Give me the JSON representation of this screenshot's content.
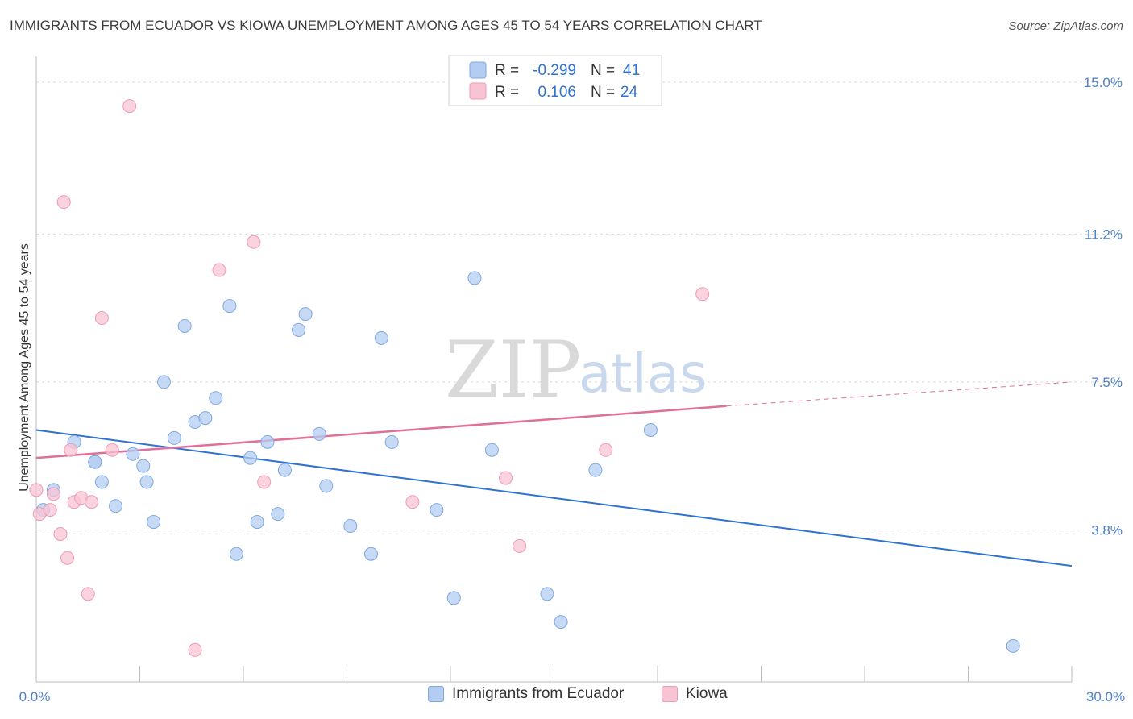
{
  "title": "IMMIGRANTS FROM ECUADOR VS KIOWA UNEMPLOYMENT AMONG AGES 45 TO 54 YEARS CORRELATION CHART",
  "source": "Source: ZipAtlas.com",
  "watermark": {
    "part1": "ZIP",
    "part2": "atlas"
  },
  "colors": {
    "series1_fill": "#b3cdf2",
    "series1_stroke": "#7fa8e0",
    "series1_line": "#2f72d0",
    "series2_fill": "#f8c4d4",
    "series2_stroke": "#ee9bb5",
    "series2_line": "#e0709a",
    "tick": "#4f81c7",
    "grid": "#d8d8d8"
  },
  "legend": {
    "rows": [
      {
        "r_label": "R =",
        "r_value": "-0.299",
        "n_label": "N =",
        "n_value": "41"
      },
      {
        "r_label": "R =",
        "r_value": "0.106",
        "n_label": "N =",
        "n_value": "24"
      }
    ]
  },
  "chart_data": {
    "type": "scatter",
    "title": "IMMIGRANTS FROM ECUADOR VS KIOWA UNEMPLOYMENT AMONG AGES 45 TO 54 YEARS CORRELATION CHART",
    "xlabel": "",
    "ylabel": "Unemployment Among Ages 45 to 54 years",
    "xlim": [
      0,
      30
    ],
    "ylim": [
      0,
      15.4
    ],
    "x_tick_labels": [
      "0.0%",
      "30.0%"
    ],
    "y_ticks": [
      3.8,
      7.5,
      11.2,
      15.0
    ],
    "y_tick_labels": [
      "3.8%",
      "7.5%",
      "11.2%",
      "15.0%"
    ],
    "series": [
      {
        "name": "Immigrants from Ecuador",
        "points": [
          [
            0.2,
            4.3
          ],
          [
            0.5,
            4.8
          ],
          [
            1.1,
            6.0
          ],
          [
            1.7,
            5.5
          ],
          [
            2.8,
            5.7
          ],
          [
            1.7,
            5.5
          ],
          [
            1.9,
            5.0
          ],
          [
            2.3,
            4.4
          ],
          [
            3.1,
            5.4
          ],
          [
            3.2,
            5.0
          ],
          [
            3.4,
            4.0
          ],
          [
            3.7,
            7.5
          ],
          [
            4.0,
            6.1
          ],
          [
            4.3,
            8.9
          ],
          [
            4.6,
            6.5
          ],
          [
            4.9,
            6.6
          ],
          [
            5.2,
            7.1
          ],
          [
            5.6,
            9.4
          ],
          [
            5.8,
            3.2
          ],
          [
            6.2,
            5.6
          ],
          [
            6.4,
            4.0
          ],
          [
            6.7,
            6.0
          ],
          [
            7.0,
            4.2
          ],
          [
            7.2,
            5.3
          ],
          [
            7.6,
            8.8
          ],
          [
            7.8,
            9.2
          ],
          [
            8.2,
            6.2
          ],
          [
            8.4,
            4.9
          ],
          [
            9.1,
            3.9
          ],
          [
            9.7,
            3.2
          ],
          [
            10.0,
            8.6
          ],
          [
            10.3,
            6.0
          ],
          [
            11.6,
            4.3
          ],
          [
            12.1,
            2.1
          ],
          [
            12.7,
            10.1
          ],
          [
            13.2,
            5.8
          ],
          [
            14.8,
            2.2
          ],
          [
            15.2,
            1.5
          ],
          [
            16.2,
            5.3
          ],
          [
            17.8,
            6.3
          ],
          [
            28.3,
            0.9
          ]
        ],
        "trend": {
          "x": [
            0,
            30
          ],
          "y": [
            6.3,
            2.9
          ]
        }
      },
      {
        "name": "Kiowa",
        "points": [
          [
            0.0,
            4.8
          ],
          [
            0.1,
            4.2
          ],
          [
            0.4,
            4.3
          ],
          [
            0.5,
            4.7
          ],
          [
            0.7,
            3.7
          ],
          [
            0.8,
            12.0
          ],
          [
            0.9,
            3.1
          ],
          [
            1.0,
            5.8
          ],
          [
            1.1,
            4.5
          ],
          [
            1.3,
            4.6
          ],
          [
            1.5,
            2.2
          ],
          [
            1.6,
            4.5
          ],
          [
            1.9,
            9.1
          ],
          [
            2.2,
            5.8
          ],
          [
            2.7,
            14.4
          ],
          [
            4.6,
            0.8
          ],
          [
            5.3,
            10.3
          ],
          [
            6.3,
            11.0
          ],
          [
            6.6,
            5.0
          ],
          [
            10.9,
            4.5
          ],
          [
            13.6,
            5.1
          ],
          [
            14.0,
            3.4
          ],
          [
            16.5,
            5.8
          ],
          [
            19.3,
            9.7
          ]
        ],
        "trend": {
          "x": [
            0,
            20
          ],
          "y": [
            5.6,
            6.9
          ]
        },
        "trend_dashed": {
          "x": [
            20,
            30
          ],
          "y": [
            6.9,
            7.5
          ]
        }
      }
    ]
  },
  "bottom_legend": {
    "items": [
      "Immigrants from Ecuador",
      "Kiowa"
    ]
  }
}
